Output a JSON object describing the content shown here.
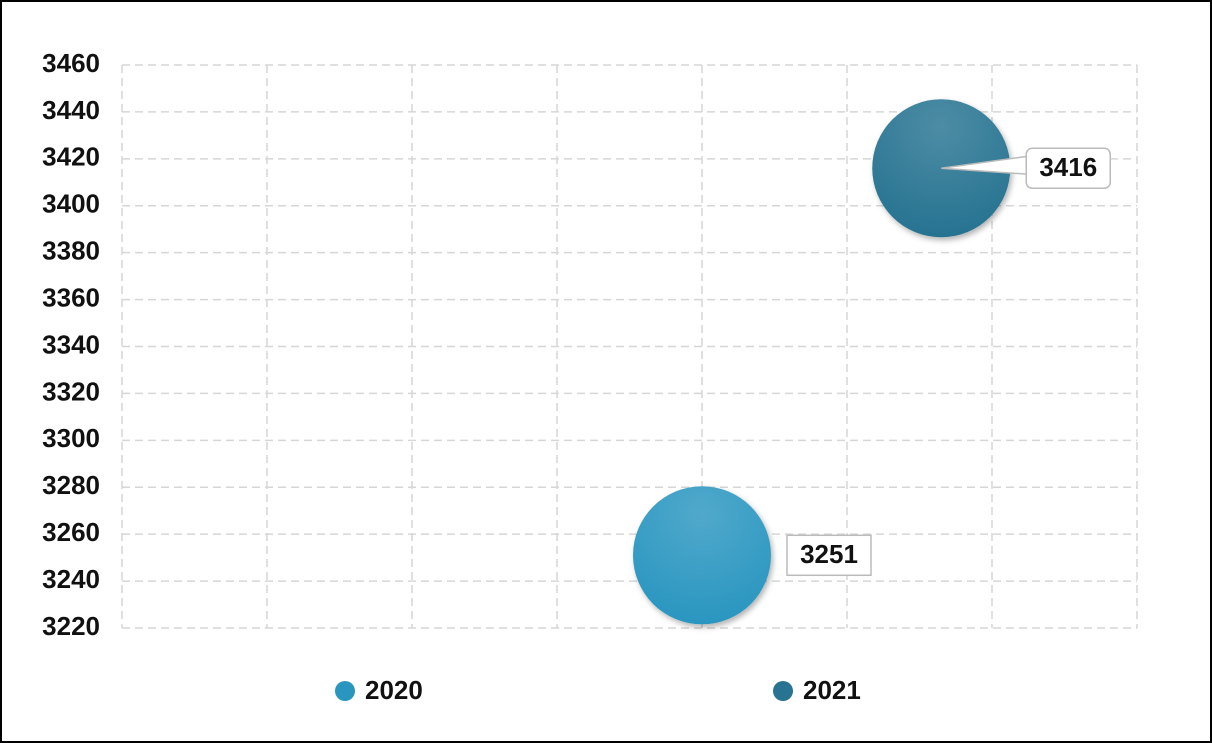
{
  "chart_data": {
    "type": "scatter",
    "series": [
      {
        "name": "2020",
        "color": "#2a96c0",
        "x": [
          4
        ],
        "values": [
          3251
        ]
      },
      {
        "name": "2021",
        "color": "#287391",
        "x": [
          5.65
        ],
        "values": [
          3416
        ]
      }
    ],
    "xlim": [
      0,
      7
    ],
    "xticks": [
      0,
      1,
      2,
      3,
      4,
      5,
      6,
      7
    ],
    "ylim": [
      3220,
      3460
    ],
    "yticks": [
      3220,
      3240,
      3260,
      3280,
      3300,
      3320,
      3340,
      3360,
      3380,
      3400,
      3420,
      3440,
      3460
    ],
    "grid": true,
    "legend": "bottom"
  }
}
